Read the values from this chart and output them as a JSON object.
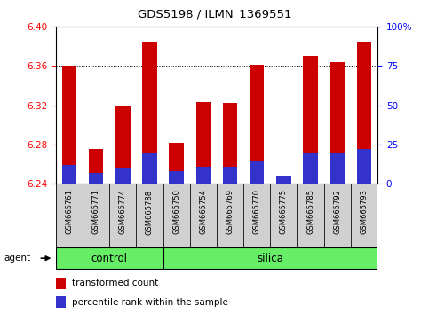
{
  "title": "GDS5198 / ILMN_1369551",
  "samples": [
    "GSM665761",
    "GSM665771",
    "GSM665774",
    "GSM665788",
    "GSM665750",
    "GSM665754",
    "GSM665769",
    "GSM665770",
    "GSM665775",
    "GSM665785",
    "GSM665792",
    "GSM665793"
  ],
  "n_control": 4,
  "transformed_counts": [
    6.36,
    6.275,
    6.32,
    6.385,
    6.282,
    6.323,
    6.322,
    6.361,
    6.248,
    6.37,
    6.364,
    6.385
  ],
  "percentile_ranks": [
    12,
    7,
    10,
    20,
    8,
    11,
    11,
    15,
    5,
    20,
    20,
    22
  ],
  "y_min": 6.24,
  "y_max": 6.4,
  "y_ticks": [
    6.24,
    6.28,
    6.32,
    6.36,
    6.4
  ],
  "right_y_ticks": [
    0,
    25,
    50,
    75,
    100
  ],
  "right_y_labels": [
    "0",
    "25",
    "50",
    "75",
    "100%"
  ],
  "bar_color_red": "#cc0000",
  "bar_color_blue": "#3333cc",
  "green_color": "#66ee66",
  "gray_color": "#d0d0d0",
  "legend_red": "transformed count",
  "legend_blue": "percentile rank within the sample",
  "bar_width": 0.55
}
